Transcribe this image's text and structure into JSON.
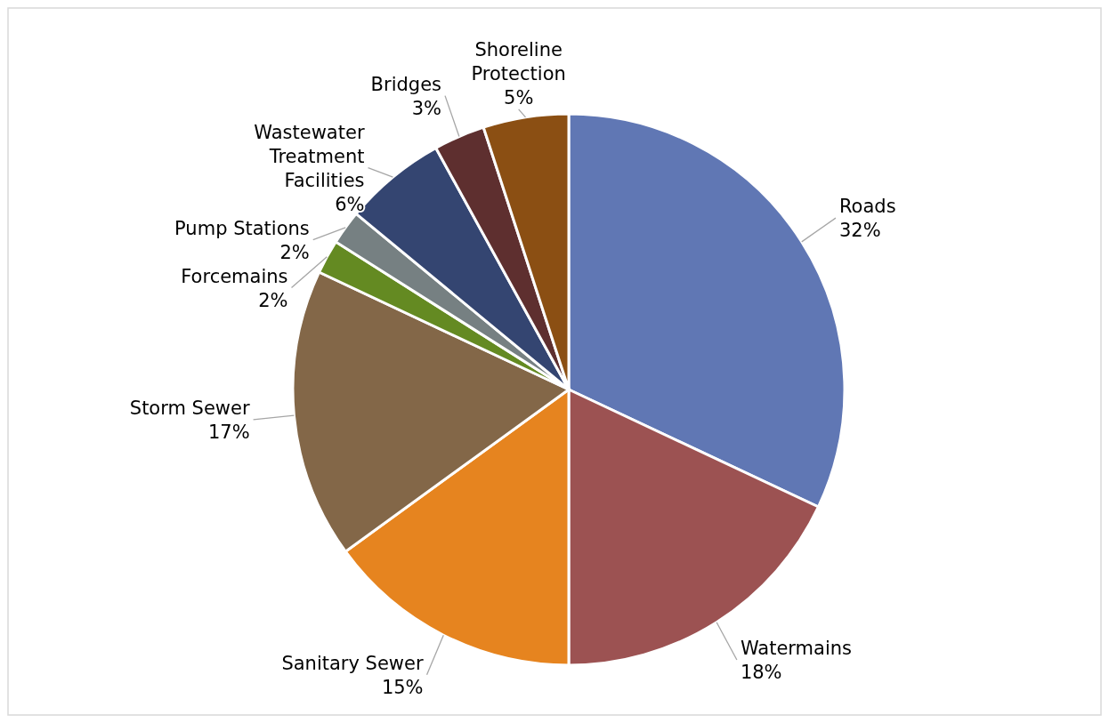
{
  "chart_data": {
    "type": "pie",
    "categories": [
      "Roads",
      "Watermains",
      "Sanitary Sewer",
      "Storm Sewer",
      "Forcemains",
      "Pump Stations",
      "Wastewater Treatment Facilities",
      "Bridges",
      "Shoreline Protection"
    ],
    "values": [
      32,
      18,
      15,
      17,
      2,
      2,
      6,
      3,
      5
    ],
    "colors": [
      "#6077b4",
      "#9c5252",
      "#e6841f",
      "#836748",
      "#648a22",
      "#768082",
      "#344571",
      "#5e2f2f",
      "#8b4f13"
    ],
    "value_labels": [
      "32%",
      "18%",
      "15%",
      "17%",
      "2%",
      "2%",
      "6%",
      "3%",
      "5%"
    ]
  }
}
